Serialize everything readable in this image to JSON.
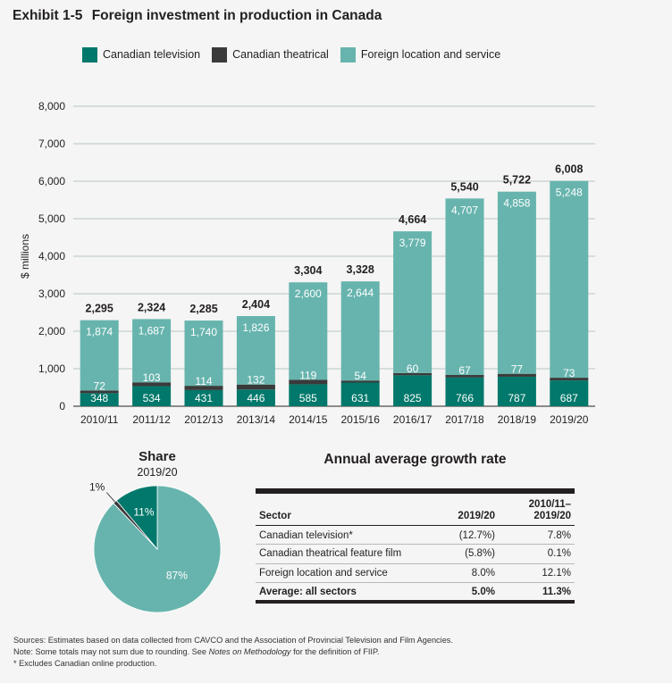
{
  "exhibit": {
    "number": "Exhibit 1-5",
    "title": "Foreign investment in production in Canada"
  },
  "legend": [
    {
      "label": "Canadian television",
      "color": "#00786b"
    },
    {
      "label": "Canadian theatrical",
      "color": "#3a3a3a"
    },
    {
      "label": "Foreign location and service",
      "color": "#67b4ae"
    }
  ],
  "chart_data": [
    {
      "type": "bar",
      "stacked": true,
      "ylabel": "$ millions",
      "ylim": [
        0,
        8000
      ],
      "yticks": [
        0,
        1000,
        2000,
        3000,
        4000,
        5000,
        6000,
        7000,
        8000
      ],
      "ytick_labels": [
        "0",
        "1,000",
        "2,000",
        "3,000",
        "4,000",
        "5,000",
        "6,000",
        "7,000",
        "8,000"
      ],
      "grid": true,
      "categories": [
        "2010/11",
        "2011/12",
        "2012/13",
        "2013/14",
        "2014/15",
        "2015/16",
        "2016/17",
        "2017/18",
        "2018/19",
        "2019/20"
      ],
      "series": [
        {
          "name": "Canadian television",
          "color": "#00786b",
          "values": [
            348,
            534,
            431,
            446,
            585,
            631,
            825,
            766,
            787,
            687
          ],
          "labels": [
            "348",
            "534",
            "431",
            "446",
            "585",
            "631",
            "825",
            "766",
            "787",
            "687"
          ]
        },
        {
          "name": "Canadian theatrical",
          "color": "#3a3a3a",
          "values": [
            72,
            103,
            114,
            132,
            119,
            54,
            60,
            67,
            77,
            73
          ],
          "labels": [
            "72",
            "103",
            "114",
            "132",
            "119",
            "54",
            "60",
            "67",
            "77",
            "73"
          ]
        },
        {
          "name": "Foreign location and service",
          "color": "#67b4ae",
          "values": [
            1874,
            1687,
            1740,
            1826,
            2600,
            2644,
            3779,
            4707,
            4858,
            5248
          ],
          "labels": [
            "1,874",
            "1,687",
            "1,740",
            "1,826",
            "2,600",
            "2,644",
            "3,779",
            "4,707",
            "4,858",
            "5,248"
          ]
        }
      ],
      "totals": [
        2295,
        2324,
        2285,
        2404,
        3304,
        3328,
        4664,
        5540,
        5722,
        6008
      ],
      "total_labels": [
        "2,295",
        "2,324",
        "2,285",
        "2,404",
        "3,304",
        "3,328",
        "4,664",
        "5,540",
        "5,722",
        "6,008"
      ]
    },
    {
      "type": "pie",
      "title": "Share",
      "subtitle": "2019/20",
      "slices": [
        {
          "name": "Canadian television",
          "value": 11,
          "label": "11%",
          "color": "#00786b"
        },
        {
          "name": "Canadian theatrical",
          "value": 1,
          "label": "1%",
          "color": "#3a3a3a"
        },
        {
          "name": "Foreign location and service",
          "value": 87,
          "label": "87%",
          "color": "#67b4ae"
        }
      ]
    }
  ],
  "growth_table": {
    "title": "Annual average growth rate",
    "headers": [
      "Sector",
      "2019/20",
      "2010/11–\n2019/20"
    ],
    "rows": [
      {
        "sector": "Canadian television*",
        "y2019": "(12.7%)",
        "span": "7.8%"
      },
      {
        "sector": "Canadian theatrical feature film",
        "y2019": "(5.8%)",
        "span": "0.1%"
      },
      {
        "sector": "Foreign location and service",
        "y2019": "8.0%",
        "span": "12.1%"
      }
    ],
    "total": {
      "sector": "Average: all sectors",
      "y2019": "5.0%",
      "span": "11.3%"
    }
  },
  "footnotes": {
    "sources": "Sources: Estimates based on data collected from CAVCO and the Association of Provincial Television and Film Agencies.",
    "note_prefix": "Note: Some totals may not sum due to rounding. See ",
    "note_emph": "Notes on Methodology",
    "note_suffix": " for the definition of FIIP.",
    "asterisk": "* Excludes Canadian online production."
  }
}
